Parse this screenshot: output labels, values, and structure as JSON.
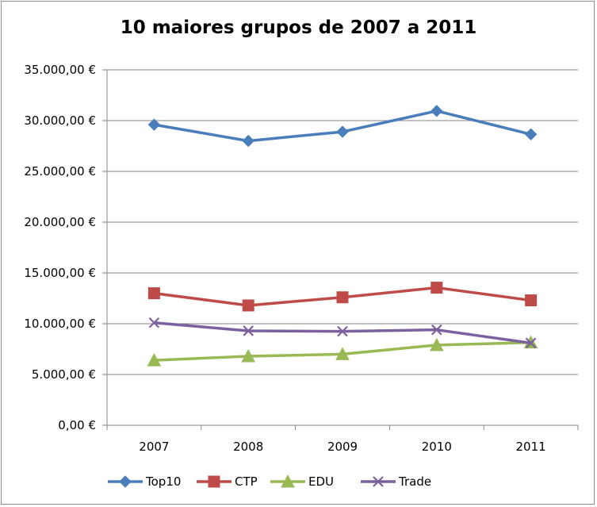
{
  "chart_data": {
    "type": "line",
    "title": "10 maiores grupos de 2007 a 2011",
    "xlabel": "",
    "ylabel": "",
    "categories": [
      "2007",
      "2008",
      "2009",
      "2010",
      "2011"
    ],
    "ylim": [
      0,
      35000
    ],
    "ytick_values": [
      0,
      5000,
      10000,
      15000,
      20000,
      25000,
      30000,
      35000
    ],
    "ytick_labels": [
      "0,00 €",
      "5.000,00 €",
      "10.000,00 €",
      "15.000,00 €",
      "20.000,00 €",
      "25.000,00 €",
      "30.000,00 €",
      "35.000,00 €"
    ],
    "grid": "horizontal",
    "legend_position": "bottom",
    "series": [
      {
        "name": "Top10",
        "values": [
          29600,
          28000,
          28900,
          30950,
          28650
        ],
        "color": "#4a7ebb",
        "marker": "diamond"
      },
      {
        "name": "CTP",
        "values": [
          13000,
          11800,
          12600,
          13550,
          12300
        ],
        "color": "#be4b48",
        "marker": "square"
      },
      {
        "name": "EDU",
        "values": [
          6400,
          6800,
          7000,
          7900,
          8150
        ],
        "color": "#98b954",
        "marker": "triangle"
      },
      {
        "name": "Trade",
        "values": [
          10100,
          9300,
          9250,
          9400,
          8100
        ],
        "color": "#7d60a0",
        "marker": "x"
      }
    ]
  }
}
